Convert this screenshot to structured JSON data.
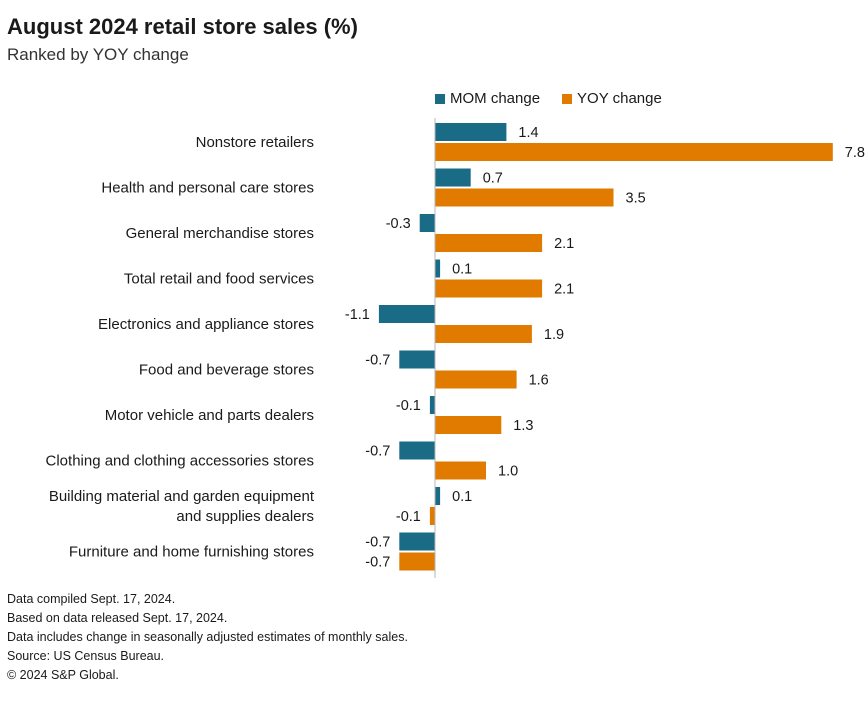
{
  "title": "August 2024 retail store sales (%)",
  "subtitle": "Ranked by YOY change",
  "colors": {
    "mom": "#1a6b85",
    "yoy": "#e07b00"
  },
  "chart_data": {
    "type": "bar",
    "orientation": "horizontal",
    "categories": [
      [
        "Nonstore retailers"
      ],
      [
        "Health and personal care stores"
      ],
      [
        "General merchandise stores"
      ],
      [
        "Total retail and food services"
      ],
      [
        "Electronics and appliance stores"
      ],
      [
        "Food and beverage stores"
      ],
      [
        "Motor vehicle and parts dealers"
      ],
      [
        "Clothing and clothing accessories stores"
      ],
      [
        "Building material and garden equipment",
        "and supplies dealers"
      ],
      [
        "Furniture and home furnishing stores"
      ]
    ],
    "series": [
      {
        "name": "MOM change",
        "values": [
          1.4,
          0.7,
          -0.3,
          0.1,
          -1.1,
          -0.7,
          -0.1,
          -0.7,
          0.1,
          -0.7
        ]
      },
      {
        "name": "YOY change",
        "values": [
          7.8,
          3.5,
          2.1,
          2.1,
          1.9,
          1.6,
          1.3,
          1.0,
          -0.1,
          -0.7
        ]
      }
    ],
    "legend_position": "top",
    "grid": false
  },
  "notes": [
    "Data compiled Sept. 17, 2024.",
    "Based on data released Sept. 17, 2024.",
    "Data includes change in seasonally adjusted estimates of monthly sales.",
    "Source: US Census Bureau.",
    "© 2024 S&P Global."
  ]
}
